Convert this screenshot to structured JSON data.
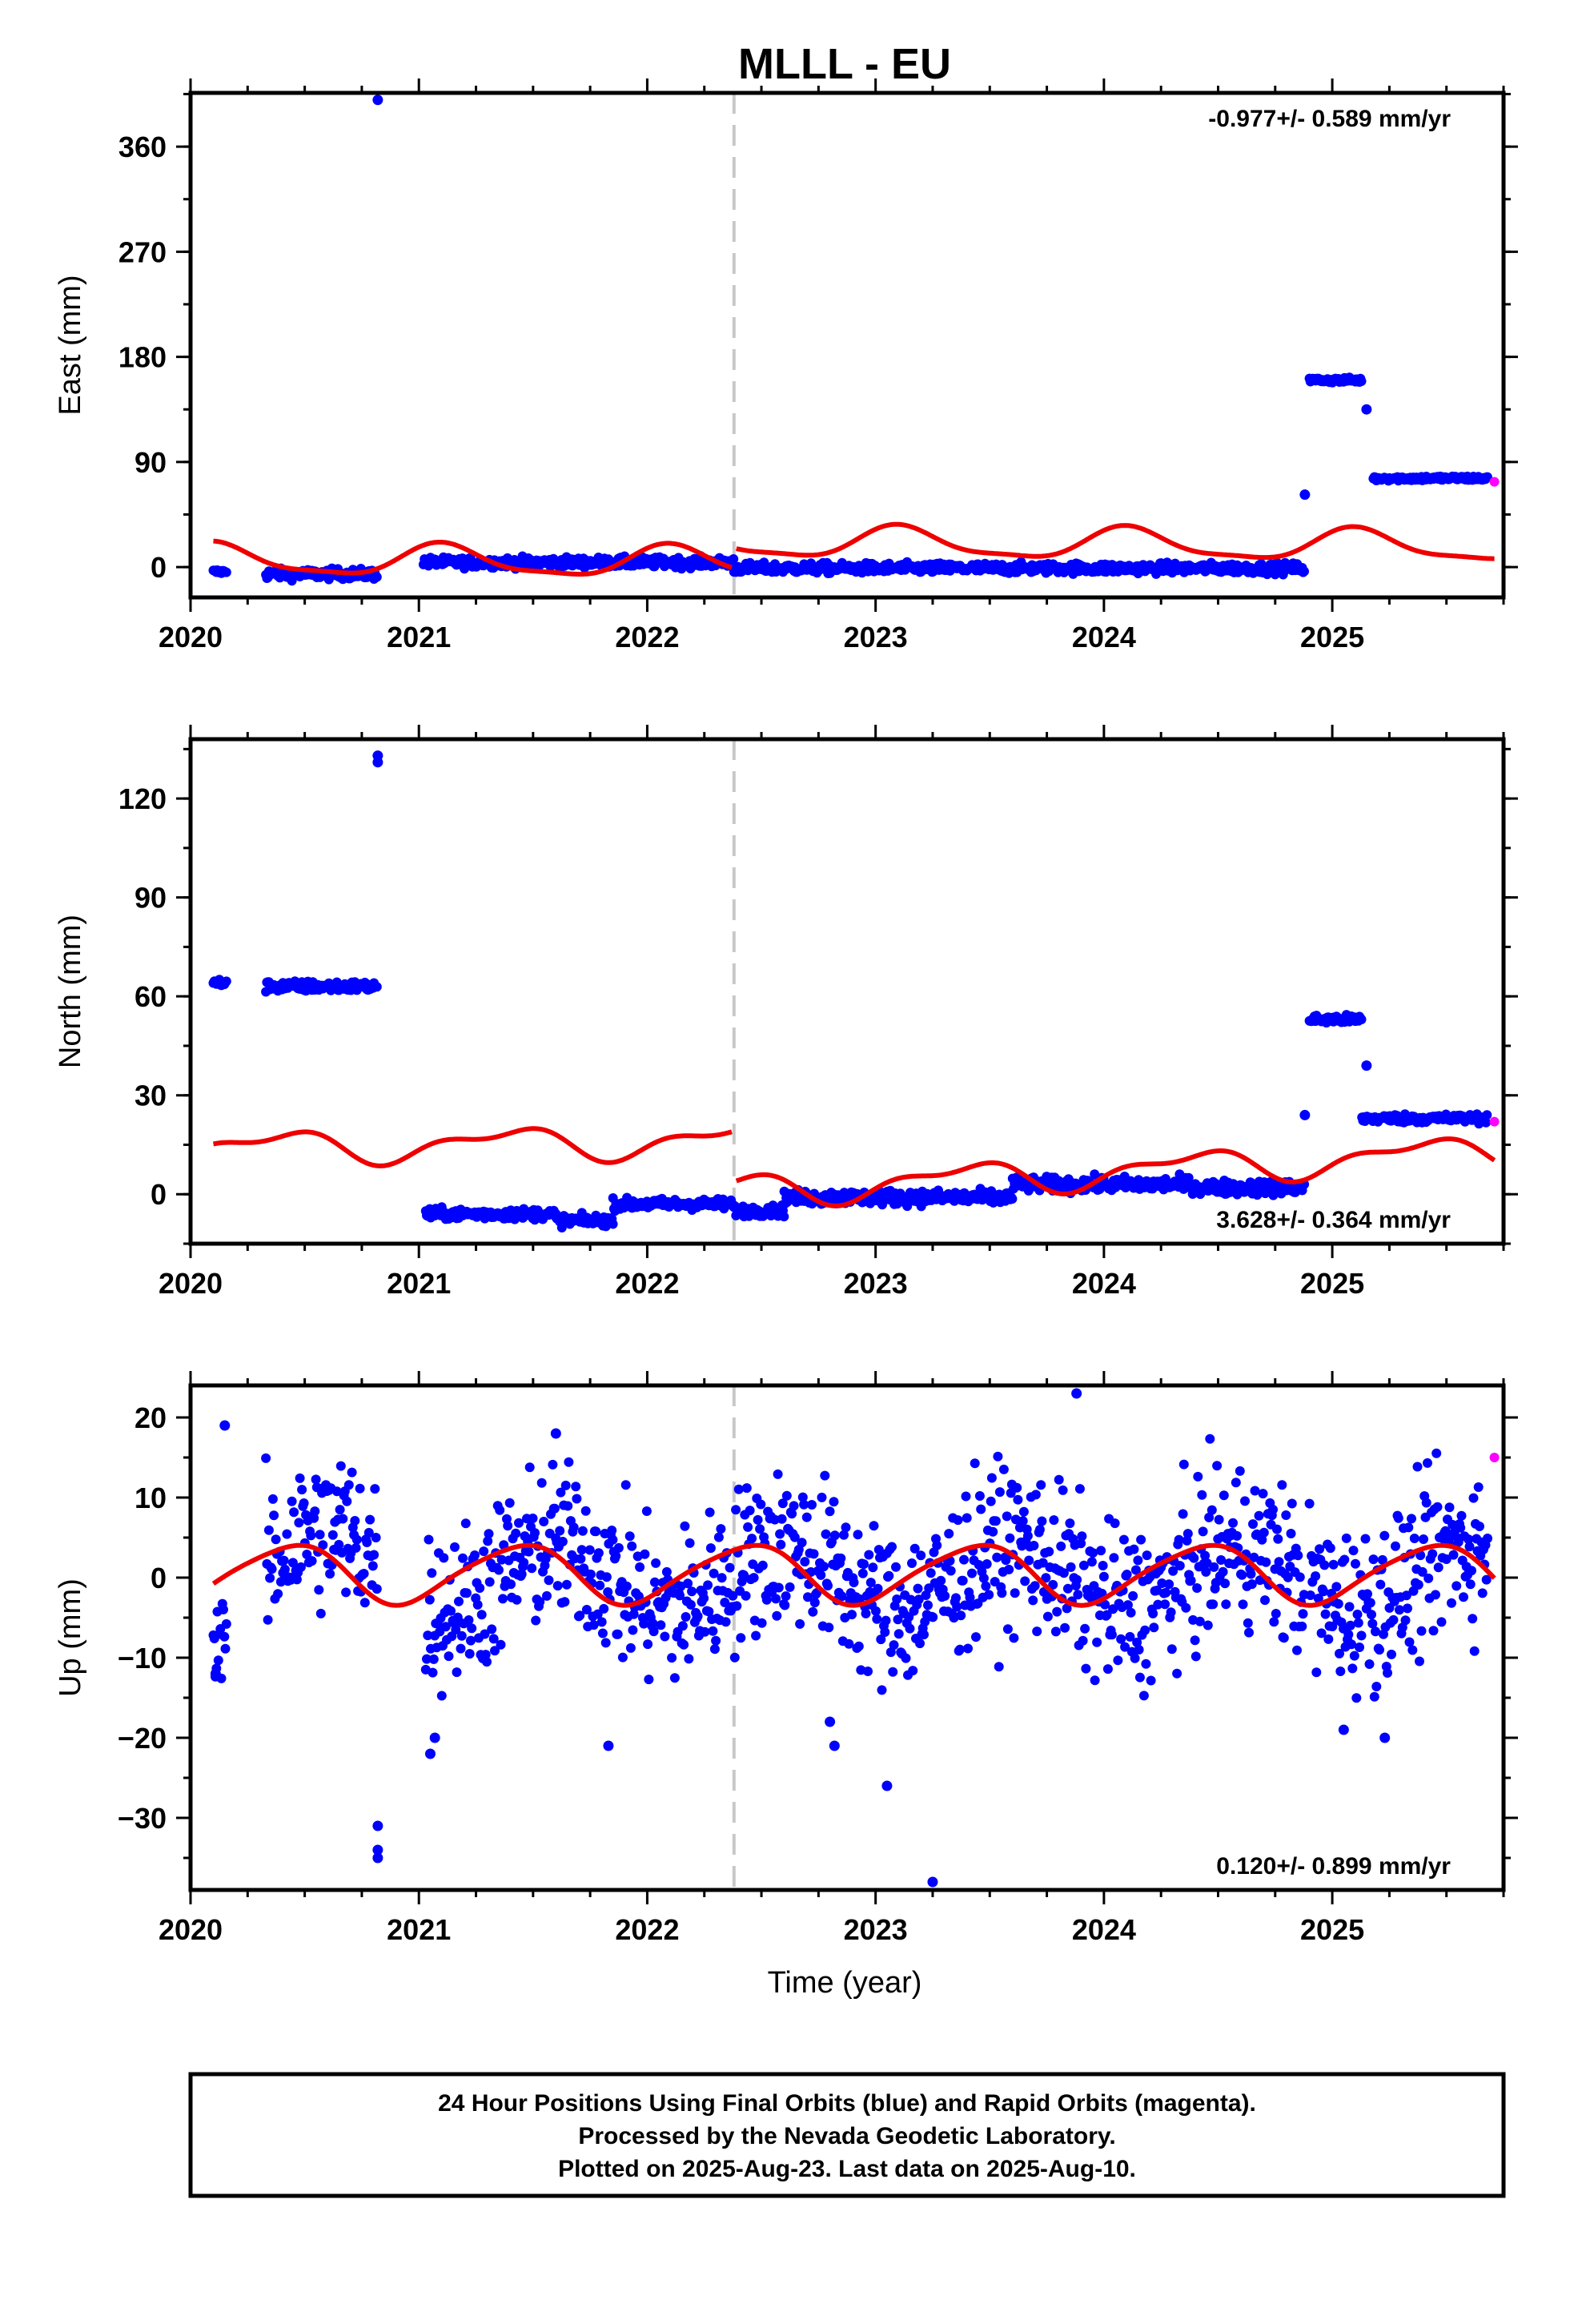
{
  "figure": {
    "title": "MLLL - EU",
    "xlabel": "Time (year)",
    "footer": [
      "24 Hour Positions Using Final Orbits (blue) and Rapid Orbits (magenta).",
      "Processed by the Nevada Geodetic Laboratory.",
      "Plotted on 2025-Aug-23. Last data on 2025-Aug-10."
    ]
  },
  "colors": {
    "final": "#0000ff",
    "rapid": "#ff00ff",
    "model": "#ee0000",
    "event": "#c8c8c8",
    "axis": "#000000"
  },
  "chart_data": [
    {
      "type": "scatter",
      "component": "East",
      "ylabel": "East (mm)",
      "rate_label": "-0.977+/- 0.589 mm/yr",
      "rate_position": "top-right",
      "xlim": [
        2020.0,
        2025.75
      ],
      "ylim": [
        -26,
        406
      ],
      "xticks": [
        2020,
        2021,
        2022,
        2023,
        2024,
        2025
      ],
      "xtick_labels": [
        "2020",
        "2021",
        "2022",
        "2023",
        "2024",
        "2025"
      ],
      "yticks": [
        0,
        90,
        180,
        270,
        360
      ],
      "ytick_labels": [
        "0",
        "90",
        "180",
        "270",
        "360"
      ],
      "grid": false,
      "event_line_x": 2022.38,
      "final_segments": [
        {
          "x_start": 2020.1,
          "x_end": 2020.16,
          "y": -4,
          "scatter": 2
        },
        {
          "x_start": 2020.33,
          "x_end": 2020.82,
          "y": -6,
          "scatter": 4
        },
        {
          "x_start": 2021.02,
          "x_end": 2022.38,
          "y": 4,
          "scatter": 4
        },
        {
          "x_start": 2022.38,
          "x_end": 2024.88,
          "y": -1,
          "scatter": 4
        },
        {
          "x_start": 2024.9,
          "x_end": 2025.13,
          "y": 160,
          "scatter": 2
        },
        {
          "x_start": 2025.18,
          "x_end": 2025.68,
          "y": 76,
          "scatter": 2
        }
      ],
      "final_outliers": [
        {
          "x": 2020.82,
          "y": 400
        },
        {
          "x": 2024.88,
          "y": 62
        },
        {
          "x": 2025.15,
          "y": 135
        }
      ],
      "rapid_points": [
        {
          "x": 2025.71,
          "y": 73
        }
      ],
      "model_segments": [
        {
          "x_start": 2020.1,
          "x_end": 2022.37,
          "offset": 6,
          "trend": -0.977,
          "amp_s": 8,
          "amp_c": 10,
          "amp_s2": 3,
          "amp_c2": 2
        },
        {
          "x_start": 2022.39,
          "x_end": 2025.71,
          "offset": 21,
          "trend": -0.977,
          "amp_s": 8,
          "amp_c": 10,
          "amp_s2": 3,
          "amp_c2": 2
        }
      ]
    },
    {
      "type": "scatter",
      "component": "North",
      "ylabel": "North (mm)",
      "rate_label": "3.628+/- 0.364 mm/yr",
      "rate_position": "bottom-right",
      "xlim": [
        2020.0,
        2025.75
      ],
      "ylim": [
        -15,
        138
      ],
      "xticks": [
        2020,
        2021,
        2022,
        2023,
        2024,
        2025
      ],
      "xtick_labels": [
        "2020",
        "2021",
        "2022",
        "2023",
        "2024",
        "2025"
      ],
      "yticks": [
        0,
        30,
        60,
        90,
        120
      ],
      "ytick_labels": [
        "0",
        "30",
        "60",
        "90",
        "120"
      ],
      "grid": false,
      "event_line_x": 2022.38,
      "final_segments": [
        {
          "x_start": 2020.1,
          "x_end": 2020.16,
          "y": 64,
          "scatter": 1.2
        },
        {
          "x_start": 2020.33,
          "x_end": 2020.82,
          "y": 63,
          "scatter": 1.5
        },
        {
          "x_start": 2021.03,
          "x_end": 2021.6,
          "y": -6,
          "scatter": 1.5
        },
        {
          "x_start": 2021.6,
          "x_end": 2021.85,
          "y": -8,
          "scatter": 1.5
        },
        {
          "x_start": 2021.85,
          "x_end": 2022.38,
          "y": -3,
          "scatter": 1.5
        },
        {
          "x_start": 2022.38,
          "x_end": 2022.6,
          "y": -5,
          "scatter": 1.5
        },
        {
          "x_start": 2022.6,
          "x_end": 2023.6,
          "y": -1,
          "scatter": 2
        },
        {
          "x_start": 2023.6,
          "x_end": 2024.4,
          "y": 3,
          "scatter": 2
        },
        {
          "x_start": 2024.4,
          "x_end": 2024.88,
          "y": 2,
          "scatter": 2
        },
        {
          "x_start": 2024.9,
          "x_end": 2025.13,
          "y": 53,
          "scatter": 1.2
        },
        {
          "x_start": 2025.13,
          "x_end": 2025.68,
          "y": 23,
          "scatter": 1.2
        }
      ],
      "final_outliers": [
        {
          "x": 2020.82,
          "y": 133
        },
        {
          "x": 2020.82,
          "y": 131
        },
        {
          "x": 2024.88,
          "y": 24
        },
        {
          "x": 2025.15,
          "y": 39
        }
      ],
      "rapid_points": [
        {
          "x": 2025.71,
          "y": 22
        }
      ],
      "model_segments": [
        {
          "x_start": 2020.1,
          "x_end": 2022.37,
          "offset": 14,
          "trend": 1.0,
          "amp_s": 3,
          "amp_c": -3,
          "amp_s2": 1.5,
          "amp_c2": 1.5
        },
        {
          "x_start": 2022.39,
          "x_end": 2025.71,
          "offset": 1,
          "trend": 3.628,
          "amp_s": 3,
          "amp_c": -3,
          "amp_s2": 1.5,
          "amp_c2": 1.5
        }
      ]
    },
    {
      "type": "scatter",
      "component": "Up",
      "ylabel": "Up (mm)",
      "rate_label": "0.120+/- 0.899 mm/yr",
      "rate_position": "bottom-right",
      "xlim": [
        2020.0,
        2025.75
      ],
      "ylim": [
        -39,
        24
      ],
      "xticks": [
        2020,
        2021,
        2022,
        2023,
        2024,
        2025
      ],
      "xtick_labels": [
        "2020",
        "2021",
        "2022",
        "2023",
        "2024",
        "2025"
      ],
      "yticks": [
        -30,
        -20,
        -10,
        0,
        10,
        20
      ],
      "ytick_labels": [
        "−30",
        "−20",
        "−10",
        "0",
        "10",
        "20"
      ],
      "grid": false,
      "event_line_x": 2022.38,
      "final_segments": [
        {
          "x_start": 2020.1,
          "x_end": 2020.16,
          "y": -4,
          "scatter": 3
        },
        {
          "x_start": 2020.33,
          "x_end": 2020.82,
          "y": 2,
          "scatter": 5
        },
        {
          "x_start": 2021.03,
          "x_end": 2024.88,
          "y": 0,
          "scatter": 5
        },
        {
          "x_start": 2024.9,
          "x_end": 2025.68,
          "y": 0,
          "scatter": 5
        }
      ],
      "final_outliers": [
        {
          "x": 2020.15,
          "y": 19
        },
        {
          "x": 2020.11,
          "y": -12
        },
        {
          "x": 2020.82,
          "y": -31
        },
        {
          "x": 2020.82,
          "y": -34
        },
        {
          "x": 2020.82,
          "y": -35
        },
        {
          "x": 2021.05,
          "y": -22
        },
        {
          "x": 2021.07,
          "y": -20
        },
        {
          "x": 2021.6,
          "y": 18
        },
        {
          "x": 2021.83,
          "y": -21
        },
        {
          "x": 2022.82,
          "y": -21
        },
        {
          "x": 2022.8,
          "y": -18
        },
        {
          "x": 2023.05,
          "y": -26
        },
        {
          "x": 2023.25,
          "y": -38
        },
        {
          "x": 2023.88,
          "y": 23
        },
        {
          "x": 2025.23,
          "y": -20
        },
        {
          "x": 2025.05,
          "y": -19
        }
      ],
      "rapid_points": [
        {
          "x": 2025.71,
          "y": 15
        }
      ],
      "model_segments": [
        {
          "x_start": 2020.1,
          "x_end": 2025.71,
          "offset": 0.5,
          "trend": 0.12,
          "amp_s": 1.5,
          "amp_c": -3.3,
          "amp_s2": 0.5,
          "amp_c2": 0.2
        }
      ]
    }
  ]
}
